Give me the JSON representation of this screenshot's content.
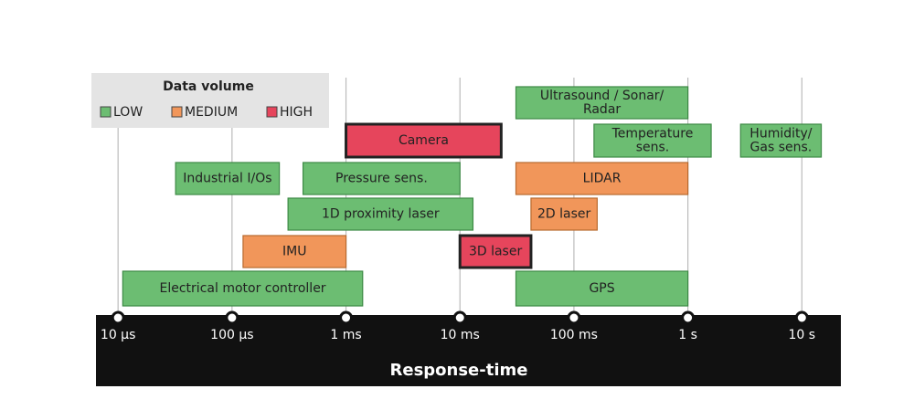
{
  "chart_data": {
    "type": "range-bar",
    "xlabel": "Response-time",
    "log_x": true,
    "grid": true,
    "xlim": [
      6.4e-06,
      22
    ],
    "xticks": [
      {
        "value": 1e-05,
        "label": "10 µs"
      },
      {
        "value": 0.0001,
        "label": "100 µs"
      },
      {
        "value": 0.001,
        "label": "1 ms"
      },
      {
        "value": 0.01,
        "label": "10 ms"
      },
      {
        "value": 0.1,
        "label": "100 ms"
      },
      {
        "value": 1,
        "label": "1 s"
      },
      {
        "value": 10,
        "label": "10 s"
      }
    ],
    "legend": {
      "title": "Data volume",
      "position": "upper left",
      "entries": [
        {
          "name": "LOW",
          "color": "#6cbd72"
        },
        {
          "name": "MEDIUM",
          "color": "#f1965a"
        },
        {
          "name": "HIGH",
          "color": "#e6455c"
        }
      ]
    },
    "items": [
      {
        "name": "Electrical motor controller",
        "volume": "LOW",
        "range": [
          1.1e-05,
          0.0014
        ]
      },
      {
        "name": "IMU",
        "volume": "MEDIUM",
        "range": [
          0.000125,
          0.001
        ]
      },
      {
        "name": "3D laser",
        "volume": "HIGH",
        "range": [
          0.01,
          0.042
        ]
      },
      {
        "name": "GPS",
        "volume": "LOW",
        "range": [
          0.031,
          1
        ]
      },
      {
        "name": "1D proximity laser",
        "volume": "LOW",
        "range": [
          0.00031,
          0.013
        ]
      },
      {
        "name": "2D laser",
        "volume": "MEDIUM",
        "range": [
          0.042,
          0.16
        ]
      },
      {
        "name": "Industrial I/Os",
        "volume": "LOW",
        "range": [
          3.2e-05,
          0.00026
        ]
      },
      {
        "name": "Pressure sens.",
        "volume": "LOW",
        "range": [
          0.00042,
          0.01
        ]
      },
      {
        "name": "LIDAR",
        "volume": "MEDIUM",
        "range": [
          0.031,
          1
        ]
      },
      {
        "name": "Camera",
        "volume": "HIGH",
        "range": [
          0.001,
          0.023
        ]
      },
      {
        "name": "Temperature\nsens.",
        "volume": "LOW",
        "range": [
          0.15,
          1.6
        ]
      },
      {
        "name": "Humidity/\nGas sens.",
        "volume": "LOW",
        "range": [
          2.9,
          14.8
        ]
      },
      {
        "name": "Ultrasound / Sonar/\nRadar",
        "volume": "LOW",
        "range": [
          0.031,
          1
        ]
      }
    ]
  }
}
